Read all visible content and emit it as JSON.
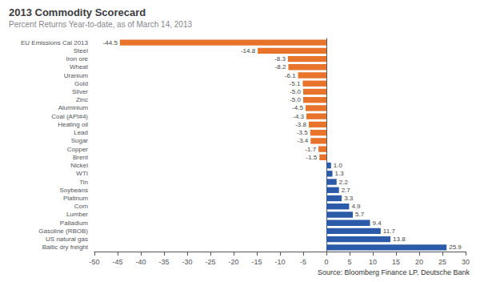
{
  "chart_data": {
    "type": "bar",
    "orientation": "horizontal",
    "title": "2013 Commodity Scorecard",
    "subtitle": "Percent Returns Year-to-date, as of March 14, 2013",
    "annotations": [
      "Source: Bloomberg Finance LP, Deutsche Bank"
    ],
    "categories": [
      "Baltic dry freight",
      "US natural gas",
      "Gasoline (RBOB)",
      "Palladium",
      "Lumber",
      "Corn",
      "Platinum",
      "Soybeans",
      "Tin",
      "WTI",
      "Nickel",
      "Brent",
      "Copper",
      "Sugar",
      "Lead",
      "Heating oil",
      "Coal (API#4)",
      "Aluminium",
      "Zinc",
      "Silver",
      "Gold",
      "Uranium",
      "Wheat",
      "Iron ore",
      "Steel",
      "EU Emissions Cal 2013"
    ],
    "values": [
      25.9,
      13.8,
      11.7,
      9.4,
      5.7,
      4.9,
      3.3,
      2.7,
      2.2,
      1.3,
      1.0,
      -1.5,
      -1.7,
      -3.4,
      -3.5,
      -3.8,
      -4.3,
      -4.5,
      -5.0,
      -5.0,
      -5.1,
      -6.1,
      -8.2,
      -8.3,
      -14.8,
      -44.5
    ],
    "value_labels": [
      "25.9",
      "13.8",
      "11.7",
      "9.4",
      "5.7",
      "4.9",
      "3.3",
      "2.7",
      "2.2",
      "1.3",
      "1.0",
      "-1.5",
      "-1.7",
      "-3.4",
      "-3.5",
      "-3.8",
      "-4.3",
      "-4.5",
      "-5.0",
      "-5.0",
      "-5.1",
      "-6.1",
      "-8.2",
      "-8.3",
      "-14.8",
      "-44.5"
    ],
    "colors": [
      "#2B5BA8",
      "#2B5BA8",
      "#2B5BA8",
      "#2B5BA8",
      "#2B5BA8",
      "#2B5BA8",
      "#2B5BA8",
      "#2B5BA8",
      "#2B5BA8",
      "#2B5BA8",
      "#2B5BA8",
      "#E8732A",
      "#E8732A",
      "#E8732A",
      "#E8732A",
      "#E8732A",
      "#E8732A",
      "#E8732A",
      "#E8732A",
      "#E8732A",
      "#E8732A",
      "#E8732A",
      "#E8732A",
      "#E8732A",
      "#E8732A",
      "#E8732A"
    ],
    "xlim": [
      -50,
      30
    ],
    "xticks": [
      -50,
      -45,
      -40,
      -35,
      -30,
      -25,
      -20,
      -15,
      -10,
      -5,
      0,
      5,
      10,
      15,
      20,
      25,
      30
    ],
    "data_labels": true,
    "grid": false
  }
}
